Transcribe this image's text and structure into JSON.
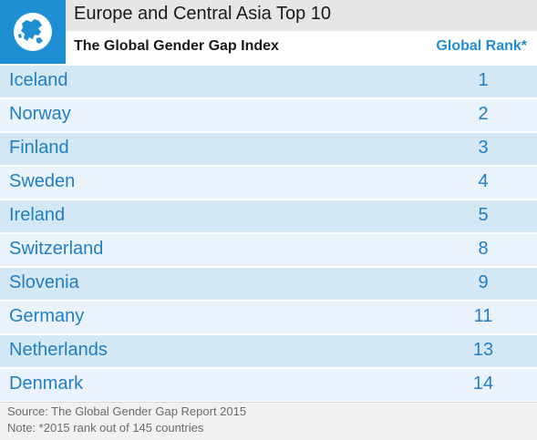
{
  "header": {
    "title": "Europe and Central Asia Top 10",
    "subtitle": "The Global Gender Gap Index",
    "rank_label": "Global Rank*",
    "logo_icon": "globe-europe-icon"
  },
  "chart_data": {
    "type": "table",
    "title": "Europe and Central Asia Top 10",
    "subtitle": "The Global Gender Gap Index",
    "columns": [
      "",
      "Global Rank*"
    ],
    "rows": [
      {
        "country": "Iceland",
        "rank": 1
      },
      {
        "country": "Norway",
        "rank": 2
      },
      {
        "country": "Finland",
        "rank": 3
      },
      {
        "country": "Sweden",
        "rank": 4
      },
      {
        "country": "Ireland",
        "rank": 5
      },
      {
        "country": "Switzerland",
        "rank": 8
      },
      {
        "country": "Slovenia",
        "rank": 9
      },
      {
        "country": "Germany",
        "rank": 11
      },
      {
        "country": "Netherlands",
        "rank": 13
      },
      {
        "country": "Denmark",
        "rank": 14
      }
    ]
  },
  "footer": {
    "source": "Source: The Global Gender Gap Report 2015",
    "note": "Note: *2015 rank out of 145 countries"
  },
  "colors": {
    "accent": "#1f8fd3",
    "row_dark": "#d4e7f5",
    "row_light": "#eaf3fb",
    "title_band": "#e6e6e6"
  }
}
